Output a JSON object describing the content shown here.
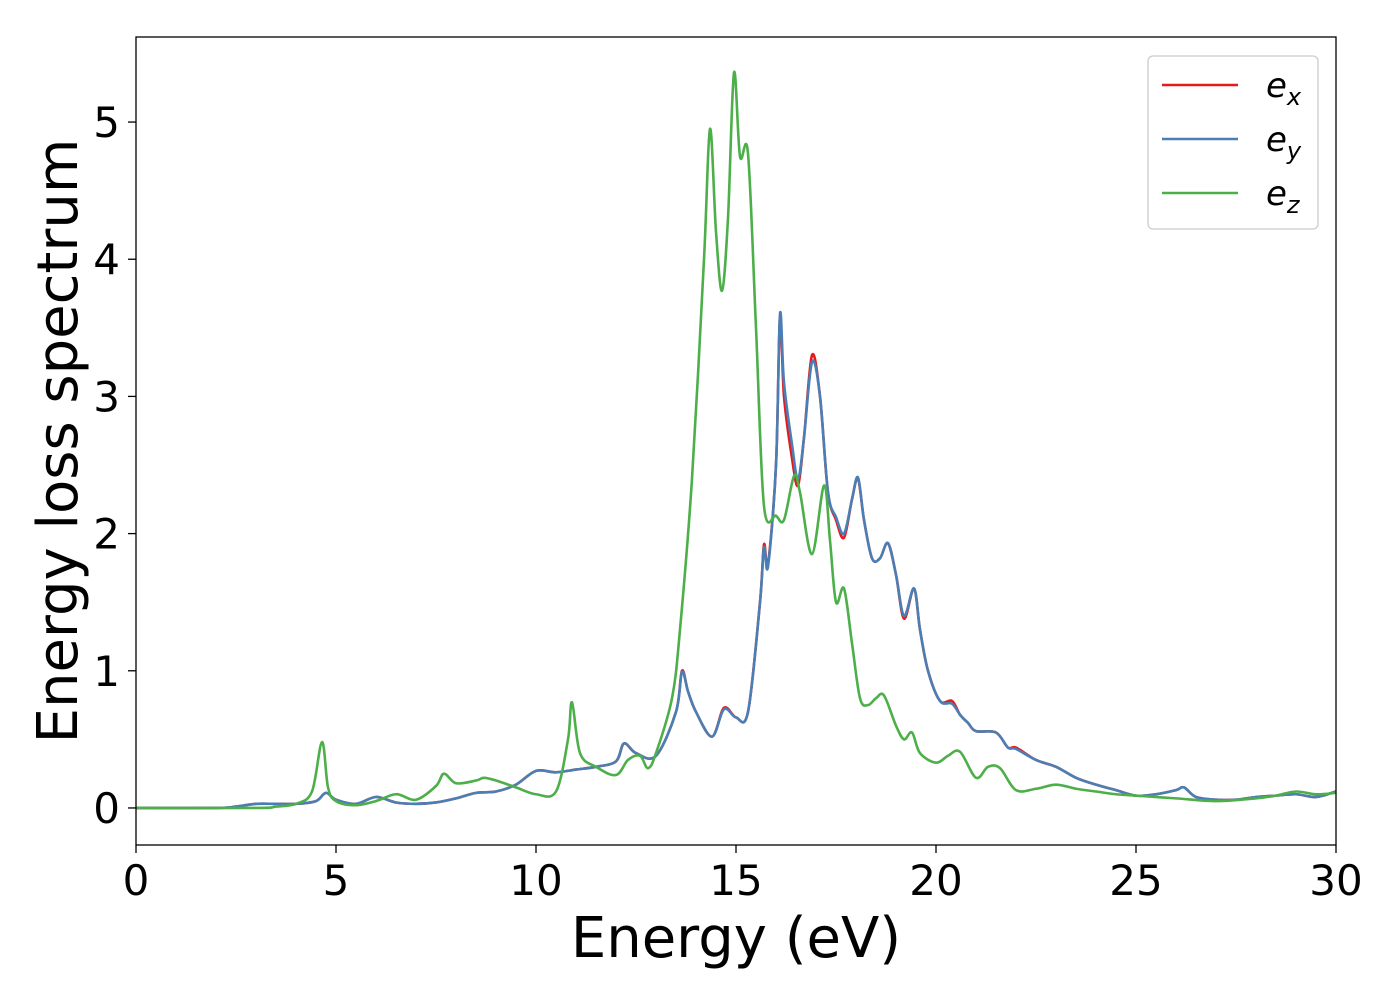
{
  "chart_data": {
    "type": "line",
    "title": "",
    "xlabel": "Energy (eV)",
    "ylabel": "Energy loss spectrum",
    "xlim": [
      0,
      30
    ],
    "ylim": [
      -0.27,
      5.62
    ],
    "xticks": [
      0,
      5,
      10,
      15,
      20,
      25,
      30
    ],
    "xtick_labels": [
      "0",
      "5",
      "10",
      "15",
      "20",
      "25",
      "30"
    ],
    "yticks": [
      0,
      1,
      2,
      3,
      4,
      5
    ],
    "ytick_labels": [
      "0",
      "1",
      "2",
      "3",
      "4",
      "5"
    ],
    "grid": false,
    "legend_position": "top-right",
    "series": [
      {
        "name": "e_x",
        "legend_base": "e",
        "legend_sub": "x",
        "color": "#e41a1c",
        "points": [
          [
            0,
            0
          ],
          [
            2,
            0
          ],
          [
            2.5,
            0.01
          ],
          [
            3,
            0.03
          ],
          [
            3.5,
            0.03
          ],
          [
            4,
            0.03
          ],
          [
            4.5,
            0.05
          ],
          [
            4.75,
            0.11
          ],
          [
            5,
            0.06
          ],
          [
            5.5,
            0.03
          ],
          [
            6,
            0.08
          ],
          [
            6.5,
            0.04
          ],
          [
            7,
            0.03
          ],
          [
            7.5,
            0.04
          ],
          [
            8,
            0.07
          ],
          [
            8.5,
            0.11
          ],
          [
            9,
            0.12
          ],
          [
            9.5,
            0.17
          ],
          [
            10,
            0.27
          ],
          [
            10.5,
            0.26
          ],
          [
            11,
            0.28
          ],
          [
            11.5,
            0.3
          ],
          [
            12,
            0.34
          ],
          [
            12.2,
            0.47
          ],
          [
            12.5,
            0.4
          ],
          [
            13,
            0.38
          ],
          [
            13.5,
            0.7
          ],
          [
            13.65,
            1.0
          ],
          [
            13.8,
            0.85
          ],
          [
            14,
            0.7
          ],
          [
            14.4,
            0.52
          ],
          [
            14.7,
            0.73
          ],
          [
            15,
            0.66
          ],
          [
            15.3,
            0.7
          ],
          [
            15.6,
            1.5
          ],
          [
            15.7,
            1.92
          ],
          [
            15.8,
            1.78
          ],
          [
            16,
            2.5
          ],
          [
            16.1,
            3.58
          ],
          [
            16.2,
            3.0
          ],
          [
            16.4,
            2.55
          ],
          [
            16.55,
            2.35
          ],
          [
            16.7,
            2.7
          ],
          [
            16.9,
            3.3
          ],
          [
            17.1,
            3.0
          ],
          [
            17.3,
            2.3
          ],
          [
            17.5,
            2.1
          ],
          [
            17.7,
            1.97
          ],
          [
            17.9,
            2.25
          ],
          [
            18.05,
            2.4
          ],
          [
            18.2,
            2.1
          ],
          [
            18.4,
            1.82
          ],
          [
            18.6,
            1.82
          ],
          [
            18.8,
            1.93
          ],
          [
            19,
            1.7
          ],
          [
            19.2,
            1.38
          ],
          [
            19.45,
            1.6
          ],
          [
            19.6,
            1.3
          ],
          [
            19.8,
            1.0
          ],
          [
            20.1,
            0.78
          ],
          [
            20.4,
            0.78
          ],
          [
            20.6,
            0.68
          ],
          [
            20.8,
            0.62
          ],
          [
            21,
            0.56
          ],
          [
            21.5,
            0.55
          ],
          [
            21.8,
            0.44
          ],
          [
            22,
            0.44
          ],
          [
            22.5,
            0.35
          ],
          [
            23,
            0.3
          ],
          [
            23.5,
            0.22
          ],
          [
            24,
            0.17
          ],
          [
            24.5,
            0.13
          ],
          [
            25,
            0.09
          ],
          [
            25.5,
            0.1
          ],
          [
            26,
            0.13
          ],
          [
            26.2,
            0.15
          ],
          [
            26.5,
            0.08
          ],
          [
            27,
            0.06
          ],
          [
            27.5,
            0.06
          ],
          [
            28,
            0.08
          ],
          [
            28.5,
            0.09
          ],
          [
            29,
            0.1
          ],
          [
            29.5,
            0.08
          ],
          [
            30,
            0.12
          ]
        ]
      },
      {
        "name": "e_y",
        "legend_base": "e",
        "legend_sub": "y",
        "color": "#4a7fb5",
        "points": [
          [
            0,
            0
          ],
          [
            2,
            0
          ],
          [
            2.5,
            0.01
          ],
          [
            3,
            0.03
          ],
          [
            3.5,
            0.03
          ],
          [
            4,
            0.03
          ],
          [
            4.5,
            0.05
          ],
          [
            4.75,
            0.11
          ],
          [
            5,
            0.06
          ],
          [
            5.5,
            0.03
          ],
          [
            6,
            0.08
          ],
          [
            6.5,
            0.04
          ],
          [
            7,
            0.03
          ],
          [
            7.5,
            0.04
          ],
          [
            8,
            0.07
          ],
          [
            8.5,
            0.11
          ],
          [
            9,
            0.12
          ],
          [
            9.5,
            0.17
          ],
          [
            10,
            0.27
          ],
          [
            10.5,
            0.26
          ],
          [
            11,
            0.28
          ],
          [
            11.5,
            0.3
          ],
          [
            12,
            0.34
          ],
          [
            12.2,
            0.47
          ],
          [
            12.5,
            0.4
          ],
          [
            13,
            0.38
          ],
          [
            13.5,
            0.7
          ],
          [
            13.65,
            0.99
          ],
          [
            13.8,
            0.85
          ],
          [
            14,
            0.7
          ],
          [
            14.4,
            0.52
          ],
          [
            14.7,
            0.72
          ],
          [
            15,
            0.66
          ],
          [
            15.3,
            0.7
          ],
          [
            15.6,
            1.5
          ],
          [
            15.7,
            1.9
          ],
          [
            15.8,
            1.76
          ],
          [
            16,
            2.5
          ],
          [
            16.1,
            3.6
          ],
          [
            16.2,
            3.1
          ],
          [
            16.4,
            2.65
          ],
          [
            16.55,
            2.4
          ],
          [
            16.7,
            2.7
          ],
          [
            16.9,
            3.25
          ],
          [
            17.1,
            3.0
          ],
          [
            17.3,
            2.3
          ],
          [
            17.5,
            2.12
          ],
          [
            17.7,
            2.0
          ],
          [
            17.9,
            2.25
          ],
          [
            18.05,
            2.41
          ],
          [
            18.2,
            2.1
          ],
          [
            18.4,
            1.82
          ],
          [
            18.6,
            1.82
          ],
          [
            18.8,
            1.93
          ],
          [
            19,
            1.7
          ],
          [
            19.2,
            1.4
          ],
          [
            19.45,
            1.6
          ],
          [
            19.6,
            1.3
          ],
          [
            19.8,
            1.0
          ],
          [
            20.1,
            0.78
          ],
          [
            20.4,
            0.76
          ],
          [
            20.6,
            0.68
          ],
          [
            20.8,
            0.62
          ],
          [
            21,
            0.56
          ],
          [
            21.5,
            0.55
          ],
          [
            21.8,
            0.44
          ],
          [
            22,
            0.43
          ],
          [
            22.5,
            0.35
          ],
          [
            23,
            0.3
          ],
          [
            23.5,
            0.22
          ],
          [
            24,
            0.17
          ],
          [
            24.5,
            0.13
          ],
          [
            25,
            0.09
          ],
          [
            25.5,
            0.1
          ],
          [
            26,
            0.13
          ],
          [
            26.2,
            0.15
          ],
          [
            26.5,
            0.08
          ],
          [
            27,
            0.06
          ],
          [
            27.5,
            0.06
          ],
          [
            28,
            0.08
          ],
          [
            28.5,
            0.09
          ],
          [
            29,
            0.1
          ],
          [
            29.5,
            0.08
          ],
          [
            30,
            0.12
          ]
        ]
      },
      {
        "name": "e_z",
        "legend_base": "e",
        "legend_sub": "z",
        "color": "#4daf4a",
        "points": [
          [
            0,
            0
          ],
          [
            3,
            0
          ],
          [
            3.5,
            0.01
          ],
          [
            4,
            0.03
          ],
          [
            4.4,
            0.12
          ],
          [
            4.65,
            0.48
          ],
          [
            4.8,
            0.15
          ],
          [
            5,
            0.05
          ],
          [
            5.5,
            0.02
          ],
          [
            6,
            0.05
          ],
          [
            6.5,
            0.1
          ],
          [
            7,
            0.06
          ],
          [
            7.5,
            0.16
          ],
          [
            7.7,
            0.25
          ],
          [
            8,
            0.18
          ],
          [
            8.5,
            0.2
          ],
          [
            8.7,
            0.22
          ],
          [
            9,
            0.2
          ],
          [
            9.5,
            0.15
          ],
          [
            10,
            0.1
          ],
          [
            10.5,
            0.12
          ],
          [
            10.8,
            0.5
          ],
          [
            10.9,
            0.77
          ],
          [
            11.1,
            0.4
          ],
          [
            11.5,
            0.3
          ],
          [
            12,
            0.24
          ],
          [
            12.3,
            0.35
          ],
          [
            12.6,
            0.38
          ],
          [
            12.8,
            0.29
          ],
          [
            13,
            0.4
          ],
          [
            13.4,
            0.8
          ],
          [
            13.6,
            1.3
          ],
          [
            13.9,
            2.4
          ],
          [
            14.2,
            4.0
          ],
          [
            14.35,
            4.95
          ],
          [
            14.5,
            4.2
          ],
          [
            14.65,
            3.77
          ],
          [
            14.8,
            4.3
          ],
          [
            14.95,
            5.36
          ],
          [
            15.1,
            4.75
          ],
          [
            15.3,
            4.77
          ],
          [
            15.5,
            3.5
          ],
          [
            15.7,
            2.2
          ],
          [
            16,
            2.13
          ],
          [
            16.2,
            2.1
          ],
          [
            16.45,
            2.42
          ],
          [
            16.6,
            2.3
          ],
          [
            16.9,
            1.85
          ],
          [
            17.2,
            2.35
          ],
          [
            17.35,
            1.95
          ],
          [
            17.5,
            1.5
          ],
          [
            17.7,
            1.6
          ],
          [
            17.9,
            1.2
          ],
          [
            18.1,
            0.8
          ],
          [
            18.3,
            0.75
          ],
          [
            18.5,
            0.8
          ],
          [
            18.7,
            0.82
          ],
          [
            19,
            0.6
          ],
          [
            19.2,
            0.5
          ],
          [
            19.4,
            0.55
          ],
          [
            19.6,
            0.4
          ],
          [
            20,
            0.33
          ],
          [
            20.3,
            0.38
          ],
          [
            20.6,
            0.41
          ],
          [
            21,
            0.22
          ],
          [
            21.3,
            0.3
          ],
          [
            21.6,
            0.29
          ],
          [
            22,
            0.13
          ],
          [
            22.5,
            0.14
          ],
          [
            23,
            0.17
          ],
          [
            23.5,
            0.14
          ],
          [
            24,
            0.12
          ],
          [
            24.5,
            0.1
          ],
          [
            25,
            0.09
          ],
          [
            26,
            0.07
          ],
          [
            27,
            0.05
          ],
          [
            28,
            0.07
          ],
          [
            28.5,
            0.09
          ],
          [
            29,
            0.12
          ],
          [
            29.5,
            0.1
          ],
          [
            30,
            0.11
          ]
        ]
      }
    ]
  }
}
